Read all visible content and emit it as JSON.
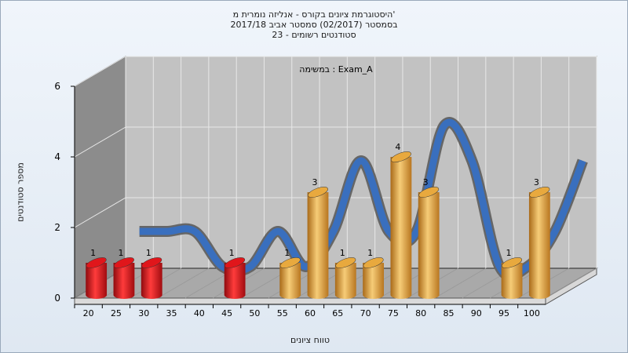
{
  "title_lines": [
    "היסטוגרמת ציונים בקורס - אנליזה נומרית מ'",
    "בסמסטר (02/2017) סמסטר אביב 2017/18",
    "סטודנטים רשומים - 23"
  ],
  "chart_data": {
    "type": "bar",
    "subtitle": "במשימה : Exam_A",
    "xlabel": "טווח ציונים",
    "ylabel": "מספר סטודנטים",
    "categories": [
      "20",
      "25",
      "30",
      "35",
      "40",
      "45",
      "50",
      "55",
      "60",
      "65",
      "70",
      "75",
      "80",
      "85",
      "90",
      "95",
      "100"
    ],
    "values": [
      1,
      1,
      1,
      0,
      0,
      1,
      0,
      1,
      3,
      1,
      1,
      4,
      3,
      0,
      0,
      1,
      3
    ],
    "ylim": [
      0,
      6
    ],
    "yticks": [
      0,
      2,
      4,
      6
    ],
    "grid": true,
    "legend": "none",
    "colors": {
      "fail": "#e0161b",
      "pass": "#e8a93e",
      "curve_front": "#3470c8",
      "curve_back": "#666666"
    }
  }
}
